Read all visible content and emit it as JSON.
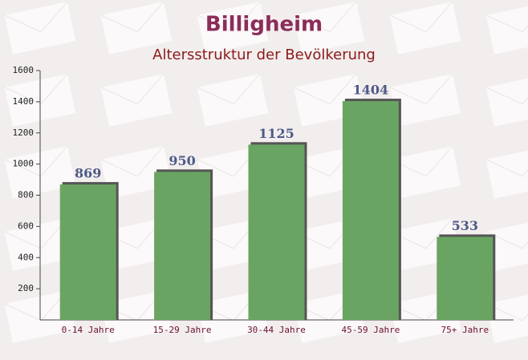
{
  "chart_data": {
    "type": "bar",
    "title": "Billigheim",
    "subtitle": "Altersstruktur der Bevölkerung",
    "categories": [
      "0-14 Jahre",
      "15-29 Jahre",
      "30-44 Jahre",
      "45-59 Jahre",
      "75+ Jahre"
    ],
    "values": [
      869,
      950,
      1125,
      1404,
      533
    ],
    "color": "#6aa462",
    "ylim": [
      0,
      1600
    ],
    "yticks": [
      200,
      400,
      600,
      800,
      1000,
      1200,
      1400,
      1600
    ]
  }
}
